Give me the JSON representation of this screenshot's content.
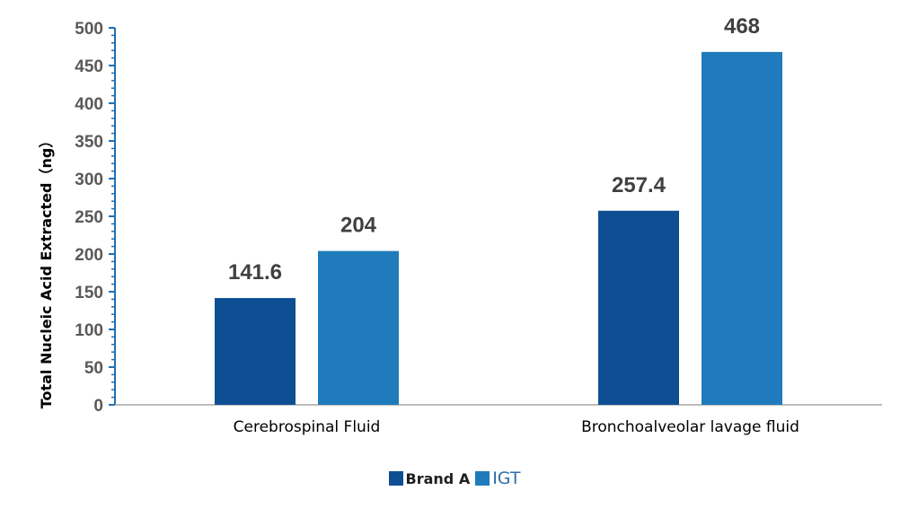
{
  "chart_data": {
    "type": "bar",
    "categories": [
      "Cerebrospinal Fluid",
      "Bronchoalveolar lavage fluid"
    ],
    "series": [
      {
        "name": "Brand A",
        "values": [
          141.6,
          257.4
        ],
        "labels": [
          "141.6",
          "257.4"
        ],
        "color": "#0e4f94"
      },
      {
        "name": "IGT",
        "values": [
          204,
          468
        ],
        "labels": [
          "204",
          "468"
        ],
        "color": "#1f7bbb"
      }
    ],
    "title": "",
    "xlabel": "",
    "ylabel": "Total Nucleic Acid Extracted（ng）",
    "ylim": [
      0,
      500
    ],
    "yticks": [
      "0",
      "50",
      "100",
      "150",
      "200",
      "250",
      "300",
      "350",
      "400",
      "450",
      "500"
    ],
    "grid": false,
    "legend": "bottom-center"
  }
}
